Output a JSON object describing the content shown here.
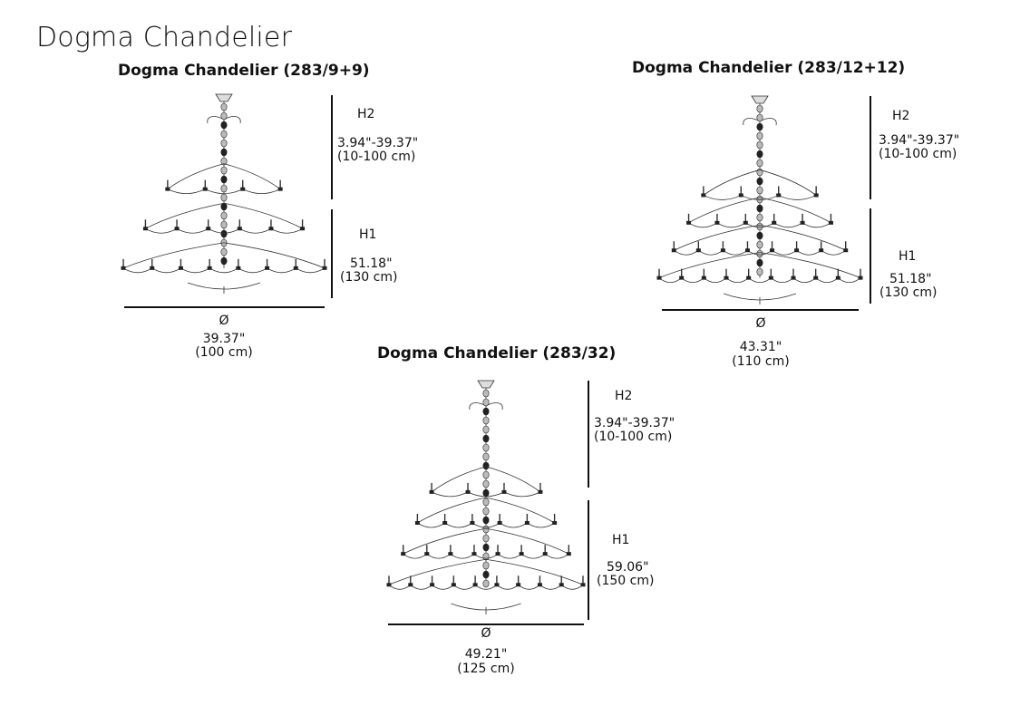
{
  "page": {
    "title": "Dogma Chandelier"
  },
  "models": [
    {
      "title": "Dogma Chandelier (283/9+9)",
      "h2": {
        "label": "H2",
        "value": "3.94\"-39.37\"",
        "metric": "(10-100 cm)"
      },
      "h1": {
        "label": "H1",
        "value": "51.18\"",
        "metric": "(130 cm)"
      },
      "diameter": {
        "symbol": "Ø",
        "value": "39.37\"",
        "metric": "(100 cm)"
      }
    },
    {
      "title": "Dogma Chandelier (283/12+12)",
      "h2": {
        "label": "H2",
        "value": "3.94\"-39.37\"",
        "metric": "(10-100 cm)"
      },
      "h1": {
        "label": "H1",
        "value": "51.18\"",
        "metric": "(130 cm)"
      },
      "diameter": {
        "symbol": "Ø",
        "value": "43.31\"",
        "metric": "(110 cm)"
      }
    },
    {
      "title": "Dogma Chandelier (283/32)",
      "h2": {
        "label": "H2",
        "value": "3.94\"-39.37\"",
        "metric": "(10-100 cm)"
      },
      "h1": {
        "label": "H1",
        "value": "59.06\"",
        "metric": "(150 cm)"
      },
      "diameter": {
        "symbol": "Ø",
        "value": "49.21\"",
        "metric": "(125 cm)"
      }
    }
  ]
}
